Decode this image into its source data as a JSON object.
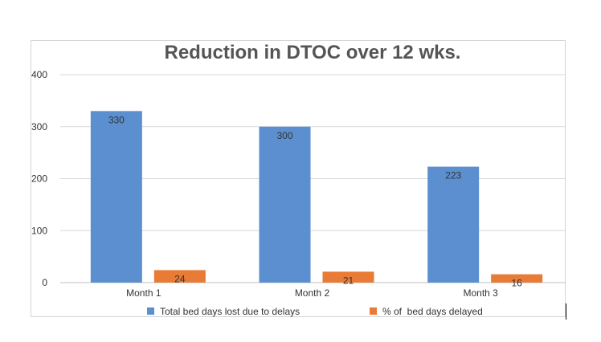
{
  "chart_data": {
    "type": "bar",
    "title": "Reduction in DTOC over 12 wks.",
    "categories": [
      "Month 1",
      "Month 2",
      "Month 3"
    ],
    "series": [
      {
        "name": "Total bed days lost due to delays",
        "values": [
          330,
          300,
          223
        ],
        "color": "#5b8fd0"
      },
      {
        "name": "% of  bed days delayed",
        "values": [
          24,
          21,
          16
        ],
        "color": "#e87b35"
      }
    ],
    "data_labels": true,
    "ylim": [
      0,
      400
    ],
    "yticks": [
      0,
      100,
      200,
      300,
      400
    ],
    "grid": true,
    "legend": "bottom",
    "xlabel": "",
    "ylabel": ""
  }
}
